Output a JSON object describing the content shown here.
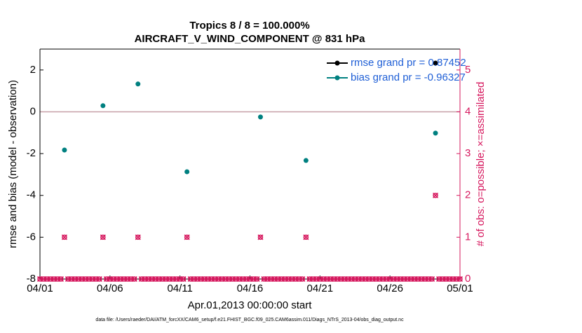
{
  "chart_data": {
    "type": "scatter",
    "title": "Tropics 8 / 8 = 100.000%",
    "subtitle": "AIRCRAFT_V_WIND_COMPONENT @ 831 hPa",
    "xlabel": "Apr.01,2013 00:00:00 start",
    "ylabel": "rmse and bias (model - observation)",
    "y2label": "# of obs: o=possible; ×=assimilated",
    "footnote": "data file: /Users/raeder/DAI/ATM_forcXX/CAM6_setup/f.e21.FHIST_BGC.f09_025.CAM6assim.011/Diags_NTrS_2013-04/obs_diag_output.nc",
    "xlim": [
      0,
      30
    ],
    "xticks": [
      {
        "value": 0,
        "label": "04/01"
      },
      {
        "value": 5,
        "label": "04/06"
      },
      {
        "value": 10,
        "label": "04/11"
      },
      {
        "value": 15,
        "label": "04/16"
      },
      {
        "value": 20,
        "label": "04/21"
      },
      {
        "value": 25,
        "label": "04/26"
      },
      {
        "value": 30,
        "label": "05/01"
      }
    ],
    "ylim": [
      -8,
      3
    ],
    "yticks": [
      -8,
      -6,
      -4,
      -2,
      0,
      2
    ],
    "y2lim": [
      0,
      5.5
    ],
    "y2ticks": [
      0,
      1,
      2,
      3,
      4,
      5
    ],
    "legend": "upper right",
    "series": [
      {
        "name": "rmse grand pr = 0.87452",
        "color": "#000000",
        "x": [
          28.25
        ],
        "values": [
          2.33
        ]
      },
      {
        "name": "bias grand pr = -0.96327",
        "color": "#008080",
        "x": [
          1.75,
          4.5,
          7.0,
          10.5,
          15.75,
          19.0,
          28.25
        ],
        "values": [
          -1.83,
          0.29,
          1.33,
          -2.87,
          -0.25,
          -2.33,
          -1.02
        ]
      },
      {
        "color": "#d6185e",
        "axis": "y2",
        "x": [
          0,
          0.25,
          0.5,
          0.75,
          1,
          1.25,
          1.5,
          1.75,
          2,
          2.25,
          2.5,
          2.75,
          3,
          3.25,
          3.5,
          3.75,
          4,
          4.25,
          4.5,
          4.75,
          5,
          5.25,
          5.5,
          5.75,
          6,
          6.25,
          6.5,
          6.75,
          7,
          7.25,
          7.5,
          7.75,
          8,
          8.25,
          8.5,
          8.75,
          9,
          9.25,
          9.5,
          9.75,
          10,
          10.25,
          10.5,
          10.75,
          11,
          11.25,
          11.5,
          11.75,
          12,
          12.25,
          12.5,
          12.75,
          13,
          13.25,
          13.5,
          13.75,
          14,
          14.25,
          14.5,
          14.75,
          15,
          15.25,
          15.5,
          15.75,
          16,
          16.25,
          16.5,
          16.75,
          17,
          17.25,
          17.5,
          17.75,
          18,
          18.25,
          18.5,
          18.75,
          19,
          19.25,
          19.5,
          19.75,
          20,
          20.25,
          20.5,
          20.75,
          21,
          21.25,
          21.5,
          21.75,
          22,
          22.25,
          22.5,
          22.75,
          23,
          23.25,
          23.5,
          23.75,
          24,
          24.25,
          24.5,
          24.75,
          25,
          25.25,
          25.5,
          25.75,
          26,
          26.25,
          26.5,
          26.75,
          27,
          27.25,
          27.5,
          27.75,
          28,
          28.25,
          28.5,
          28.75,
          29,
          29.25,
          29.5,
          29.75,
          30
        ],
        "values": [
          0,
          0,
          0,
          0,
          0,
          0,
          0,
          1,
          0,
          0,
          0,
          0,
          0,
          0,
          0,
          0,
          0,
          0,
          1,
          0,
          0,
          0,
          0,
          0,
          0,
          0,
          0,
          0,
          1,
          0,
          0,
          0,
          0,
          0,
          0,
          0,
          0,
          0,
          0,
          0,
          0,
          0,
          1,
          0,
          0,
          0,
          0,
          0,
          0,
          0,
          0,
          0,
          0,
          0,
          0,
          0,
          0,
          0,
          0,
          0,
          0,
          0,
          0,
          1,
          0,
          0,
          0,
          0,
          0,
          0,
          0,
          0,
          0,
          0,
          0,
          0,
          1,
          0,
          0,
          0,
          0,
          0,
          0,
          0,
          0,
          0,
          0,
          0,
          0,
          0,
          0,
          0,
          0,
          0,
          0,
          0,
          0,
          0,
          0,
          0,
          0,
          0,
          0,
          0,
          0,
          0,
          0,
          0,
          0,
          0,
          0,
          0,
          0,
          2,
          0,
          0,
          0,
          0,
          0,
          0,
          0
        ]
      }
    ]
  }
}
